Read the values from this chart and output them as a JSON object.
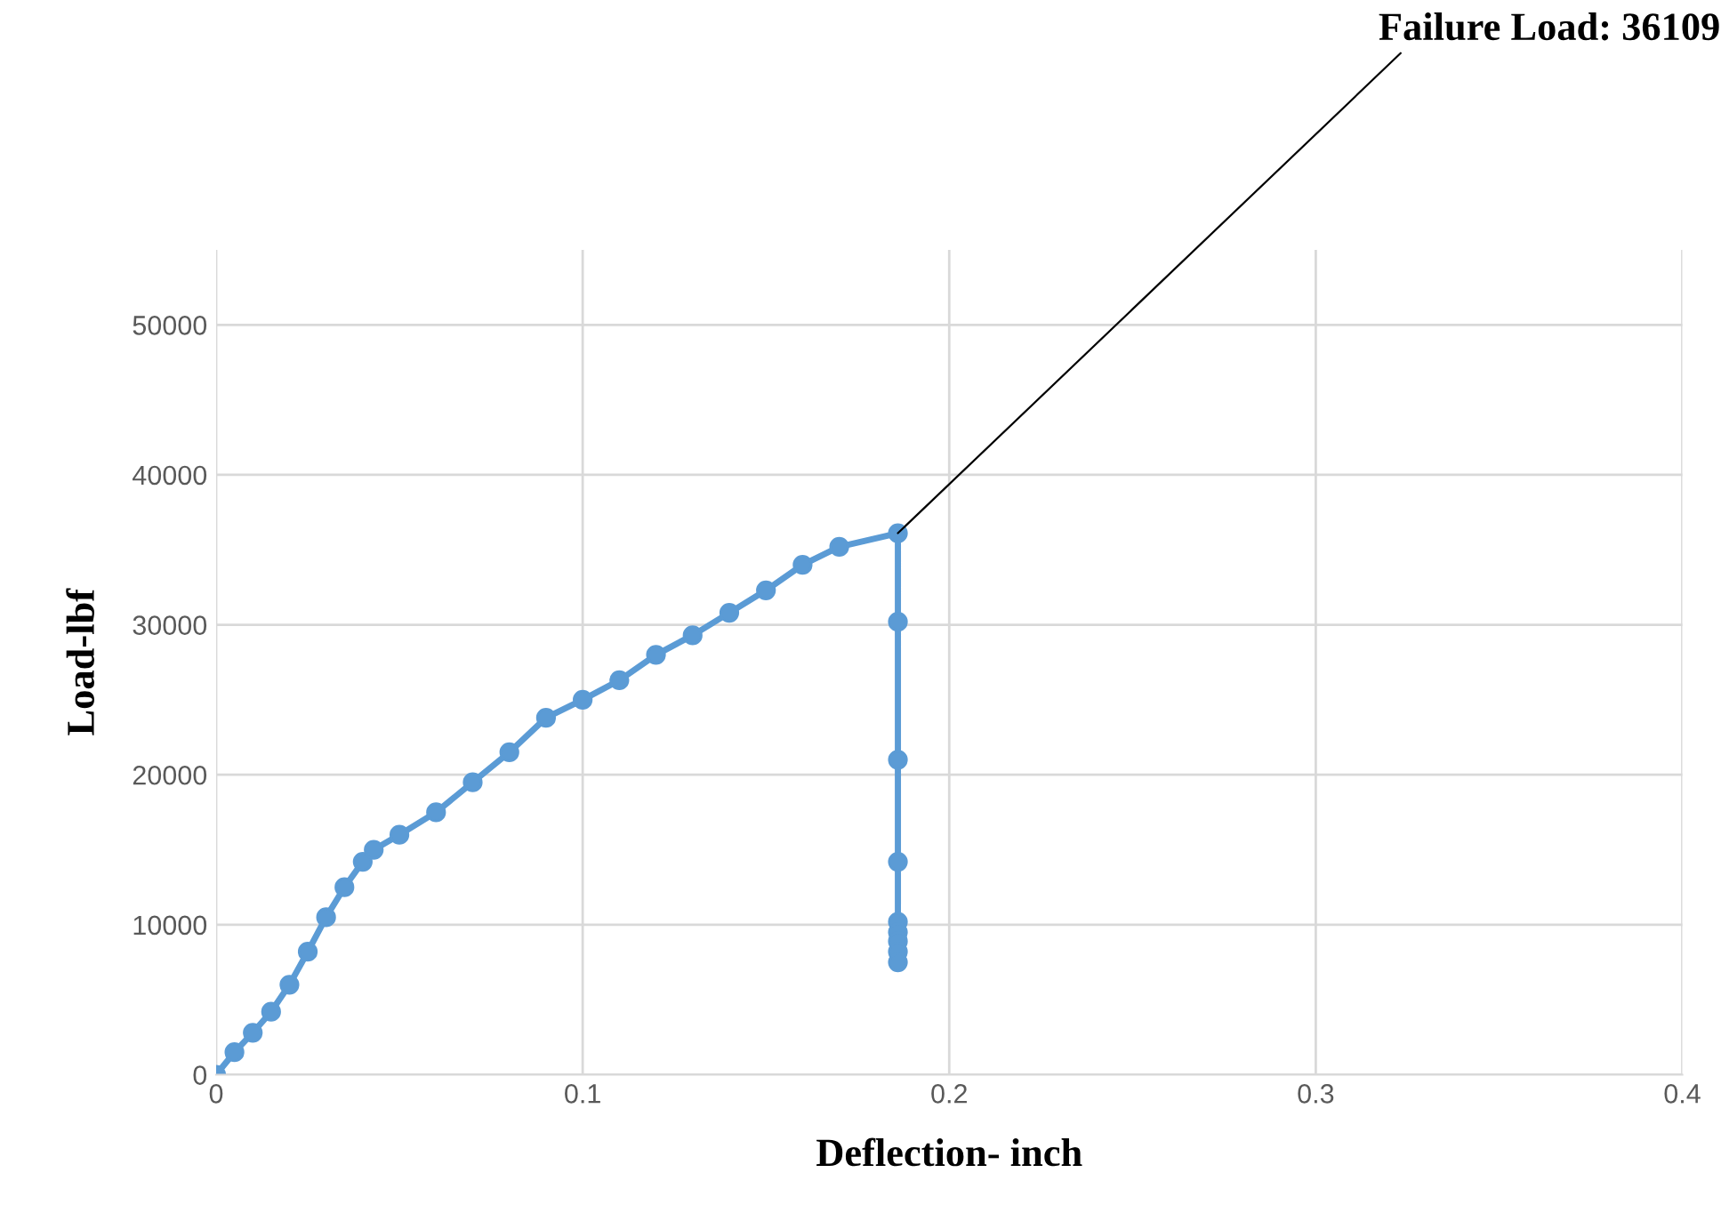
{
  "chart_data": {
    "type": "line",
    "xlabel": "Deflection- inch",
    "ylabel": "Load-lbf",
    "xlim": [
      0,
      0.4
    ],
    "xticks": [
      0,
      0.1,
      0.2,
      0.3,
      0.4
    ],
    "ylim": [
      0,
      55000
    ],
    "yticks": [
      0,
      10000,
      20000,
      30000,
      40000,
      50000
    ],
    "grid": true,
    "marker": "circle",
    "line_style": "solid",
    "series": [
      {
        "color": "#5b9bd5",
        "x": [
          0,
          0.005,
          0.01,
          0.015,
          0.02,
          0.025,
          0.03,
          0.035,
          0.04,
          0.043,
          0.05,
          0.06,
          0.07,
          0.08,
          0.09,
          0.1,
          0.11,
          0.12,
          0.13,
          0.14,
          0.15,
          0.16,
          0.17,
          0.186,
          0.186,
          0.186,
          0.186,
          0.186,
          0.186,
          0.186,
          0.186,
          0.186
        ],
        "values": [
          0,
          1500,
          2800,
          4200,
          6000,
          8200,
          10500,
          12500,
          14200,
          15000,
          16000,
          17500,
          19500,
          21500,
          23800,
          25000,
          26300,
          28000,
          29300,
          30800,
          32300,
          34000,
          35200,
          36109,
          30200,
          21000,
          14200,
          10200,
          9500,
          8900,
          8200,
          7500
        ]
      }
    ],
    "annotations": [
      {
        "text": "Failure Load: 36109",
        "x": 0.186,
        "y": 36109
      }
    ]
  }
}
